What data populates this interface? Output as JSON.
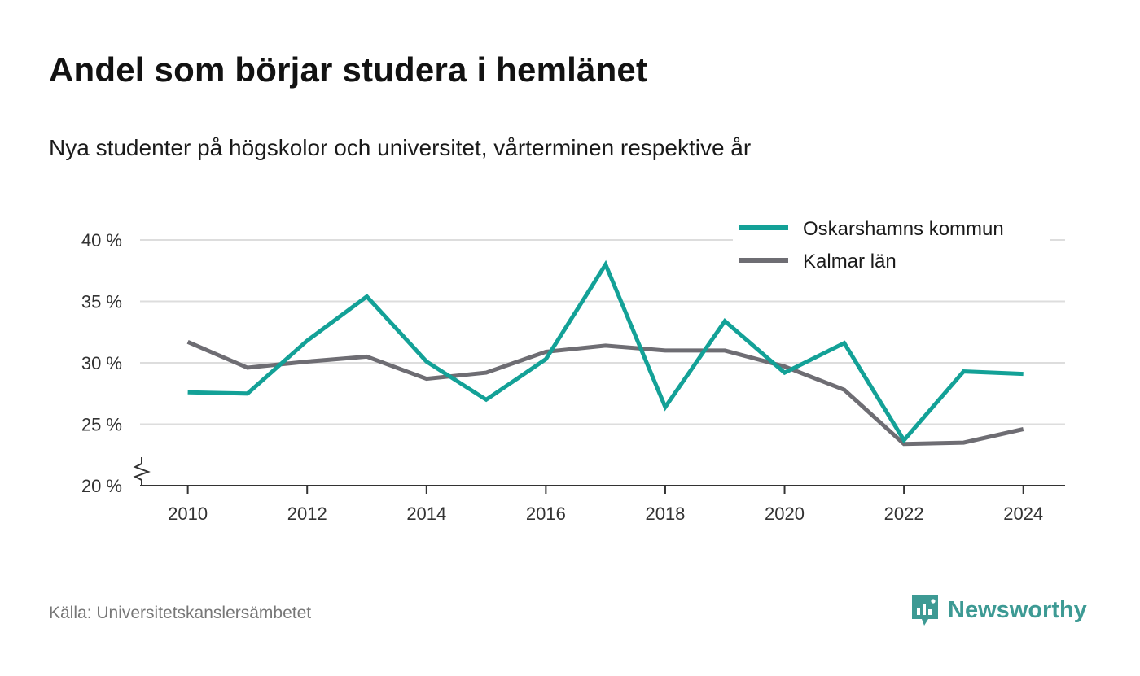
{
  "title": "Andel som börjar studera i hemlänet",
  "subtitle": "Nya studenter på högskolor och universitet, vårterminen respektive år",
  "source": "Källa: Universitetskanslersämbetet",
  "brand": {
    "name": "Newsworthy",
    "icon": "newsworthy-logo-icon"
  },
  "colors": {
    "accent": "#13a197",
    "secondary": "#6e6d73",
    "grid": "#dddddd",
    "axis": "#333333"
  },
  "chart_data": {
    "type": "line",
    "x": [
      2010,
      2011,
      2012,
      2013,
      2014,
      2015,
      2016,
      2017,
      2018,
      2019,
      2020,
      2021,
      2022,
      2023,
      2024
    ],
    "series": [
      {
        "name": "Oskarshamns kommun",
        "color": "#13a197",
        "values": [
          27.6,
          27.5,
          31.8,
          35.4,
          30.1,
          27.0,
          30.3,
          38.0,
          26.4,
          33.4,
          29.2,
          31.6,
          23.7,
          29.3,
          29.1
        ]
      },
      {
        "name": "Kalmar län",
        "color": "#6e6d73",
        "values": [
          31.7,
          29.6,
          30.1,
          30.5,
          28.7,
          29.2,
          30.9,
          31.4,
          31.0,
          31.0,
          29.7,
          27.8,
          23.4,
          23.5,
          24.6
        ]
      }
    ],
    "xticks": [
      2010,
      2012,
      2014,
      2016,
      2018,
      2020,
      2022,
      2024
    ],
    "yticks": [
      20,
      25,
      30,
      35,
      40
    ],
    "ytick_labels": [
      "20 %",
      "25 %",
      "30 %",
      "35 %",
      "40 %"
    ],
    "ylim": [
      20,
      40
    ],
    "xlim": [
      2009.2,
      2024.7
    ],
    "y_axis_break": true,
    "grid": true,
    "legend_position": "top-right"
  }
}
